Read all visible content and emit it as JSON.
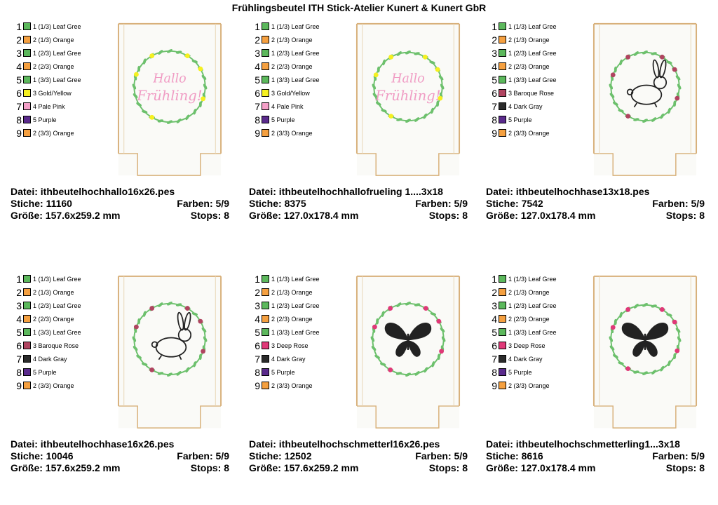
{
  "title": "Frühlingsbeutel ITH Stick-Atelier Kunert & Kunert GbR",
  "colors": {
    "leaf_green": "#5cb85c",
    "orange": "#f5a040",
    "gold_yellow": "#f5f020",
    "pale_pink": "#f4a0c8",
    "purple": "#5a2a8c",
    "baroque_rose": "#b04460",
    "dark_gray": "#2a2a2a",
    "deep_rose": "#e03878"
  },
  "designs": [
    {
      "motif": "text",
      "motif_text": [
        "Hallo",
        "Frühling!"
      ],
      "file": "Datei: ithbeutelhochhallo16x26.pes",
      "stitches": "Stiche: 11160",
      "colors_count": "Farben: 5/9",
      "size": "Größe: 157.6x259.2 mm",
      "stops": "Stops: 8",
      "legend": [
        {
          "num": "1",
          "label": "1 (1/3) Leaf Gree",
          "color": "#5cb85c"
        },
        {
          "num": "2",
          "label": "2 (1/3) Orange",
          "color": "#f5a040"
        },
        {
          "num": "3",
          "label": "1 (2/3) Leaf Gree",
          "color": "#5cb85c"
        },
        {
          "num": "4",
          "label": "2 (2/3) Orange",
          "color": "#f5a040"
        },
        {
          "num": "5",
          "label": "1 (3/3) Leaf Gree",
          "color": "#5cb85c"
        },
        {
          "num": "6",
          "label": "3 Gold/Yellow",
          "color": "#f5f020"
        },
        {
          "num": "7",
          "label": "4 Pale Pink",
          "color": "#f4a0c8"
        },
        {
          "num": "8",
          "label": "5 Purple",
          "color": "#5a2a8c"
        },
        {
          "num": "9",
          "label": "2 (3/3) Orange",
          "color": "#f5a040"
        }
      ]
    },
    {
      "motif": "text",
      "motif_text": [
        "Hallo",
        "Frühling!"
      ],
      "file": "Datei: ithbeutelhochhallofrueling 1....3x18",
      "stitches": "Stiche: 8375",
      "colors_count": "Farben: 5/9",
      "size": "Größe: 127.0x178.4 mm",
      "stops": "Stops: 8",
      "legend": [
        {
          "num": "1",
          "label": "1 (1/3) Leaf Gree",
          "color": "#5cb85c"
        },
        {
          "num": "2",
          "label": "2 (1/3) Orange",
          "color": "#f5a040"
        },
        {
          "num": "3",
          "label": "1 (2/3) Leaf Gree",
          "color": "#5cb85c"
        },
        {
          "num": "4",
          "label": "2 (2/3) Orange",
          "color": "#f5a040"
        },
        {
          "num": "5",
          "label": "1 (3/3) Leaf Gree",
          "color": "#5cb85c"
        },
        {
          "num": "6",
          "label": "3 Gold/Yellow",
          "color": "#f5f020"
        },
        {
          "num": "7",
          "label": "4 Pale Pink",
          "color": "#f4a0c8"
        },
        {
          "num": "8",
          "label": "5 Purple",
          "color": "#5a2a8c"
        },
        {
          "num": "9",
          "label": "2 (3/3) Orange",
          "color": "#f5a040"
        }
      ]
    },
    {
      "motif": "rabbit",
      "motif_text": [],
      "file": "Datei: ithbeutelhochhase13x18.pes",
      "stitches": "Stiche: 7542",
      "colors_count": "Farben: 5/9",
      "size": "Größe: 127.0x178.4 mm",
      "stops": "Stops: 8",
      "legend": [
        {
          "num": "1",
          "label": "1 (1/3) Leaf Gree",
          "color": "#5cb85c"
        },
        {
          "num": "2",
          "label": "2 (1/3) Orange",
          "color": "#f5a040"
        },
        {
          "num": "3",
          "label": "1 (2/3) Leaf Gree",
          "color": "#5cb85c"
        },
        {
          "num": "4",
          "label": "2 (2/3) Orange",
          "color": "#f5a040"
        },
        {
          "num": "5",
          "label": "1 (3/3) Leaf Gree",
          "color": "#5cb85c"
        },
        {
          "num": "6",
          "label": "3 Baroque Rose",
          "color": "#b04460"
        },
        {
          "num": "7",
          "label": "4 Dark Gray",
          "color": "#2a2a2a"
        },
        {
          "num": "8",
          "label": "5 Purple",
          "color": "#5a2a8c"
        },
        {
          "num": "9",
          "label": "2 (3/3) Orange",
          "color": "#f5a040"
        }
      ]
    },
    {
      "motif": "rabbit",
      "motif_text": [],
      "file": "Datei: ithbeutelhochhase16x26.pes",
      "stitches": "Stiche: 10046",
      "colors_count": "Farben: 5/9",
      "size": "Größe: 157.6x259.2 mm",
      "stops": "Stops: 8",
      "legend": [
        {
          "num": "1",
          "label": "1 (1/3) Leaf Gree",
          "color": "#5cb85c"
        },
        {
          "num": "2",
          "label": "2 (1/3) Orange",
          "color": "#f5a040"
        },
        {
          "num": "3",
          "label": "1 (2/3) Leaf Gree",
          "color": "#5cb85c"
        },
        {
          "num": "4",
          "label": "2 (2/3) Orange",
          "color": "#f5a040"
        },
        {
          "num": "5",
          "label": "1 (3/3) Leaf Gree",
          "color": "#5cb85c"
        },
        {
          "num": "6",
          "label": "3 Baroque Rose",
          "color": "#b04460"
        },
        {
          "num": "7",
          "label": "4 Dark Gray",
          "color": "#2a2a2a"
        },
        {
          "num": "8",
          "label": "5 Purple",
          "color": "#5a2a8c"
        },
        {
          "num": "9",
          "label": "2 (3/3) Orange",
          "color": "#f5a040"
        }
      ]
    },
    {
      "motif": "butterfly",
      "motif_text": [],
      "file": "Datei: ithbeutelhochschmetterl16x26.pes",
      "stitches": "Stiche: 12502",
      "colors_count": "Farben: 5/9",
      "size": "Größe: 157.6x259.2 mm",
      "stops": "Stops: 8",
      "legend": [
        {
          "num": "1",
          "label": "1 (1/3) Leaf Gree",
          "color": "#5cb85c"
        },
        {
          "num": "2",
          "label": "2 (1/3) Orange",
          "color": "#f5a040"
        },
        {
          "num": "3",
          "label": "1 (2/3) Leaf Gree",
          "color": "#5cb85c"
        },
        {
          "num": "4",
          "label": "2 (2/3) Orange",
          "color": "#f5a040"
        },
        {
          "num": "5",
          "label": "1 (3/3) Leaf Gree",
          "color": "#5cb85c"
        },
        {
          "num": "6",
          "label": "3 Deep Rose",
          "color": "#e03878"
        },
        {
          "num": "7",
          "label": "4 Dark Gray",
          "color": "#2a2a2a"
        },
        {
          "num": "8",
          "label": "5 Purple",
          "color": "#5a2a8c"
        },
        {
          "num": "9",
          "label": "2 (3/3) Orange",
          "color": "#f5a040"
        }
      ]
    },
    {
      "motif": "butterfly",
      "motif_text": [],
      "file": "Datei: ithbeutelhochschmetterling1...3x18",
      "stitches": "Stiche: 8616",
      "colors_count": "Farben: 5/9",
      "size": "Größe: 127.0x178.4 mm",
      "stops": "Stops: 8",
      "legend": [
        {
          "num": "1",
          "label": "1 (1/3) Leaf Gree",
          "color": "#5cb85c"
        },
        {
          "num": "2",
          "label": "2 (1/3) Orange",
          "color": "#f5a040"
        },
        {
          "num": "3",
          "label": "1 (2/3) Leaf Gree",
          "color": "#5cb85c"
        },
        {
          "num": "4",
          "label": "2 (2/3) Orange",
          "color": "#f5a040"
        },
        {
          "num": "5",
          "label": "1 (3/3) Leaf Gree",
          "color": "#5cb85c"
        },
        {
          "num": "6",
          "label": "3 Deep Rose",
          "color": "#e03878"
        },
        {
          "num": "7",
          "label": "4 Dark Gray",
          "color": "#2a2a2a"
        },
        {
          "num": "8",
          "label": "5 Purple",
          "color": "#5a2a8c"
        },
        {
          "num": "9",
          "label": "2 (3/3) Orange",
          "color": "#f5a040"
        }
      ]
    }
  ]
}
